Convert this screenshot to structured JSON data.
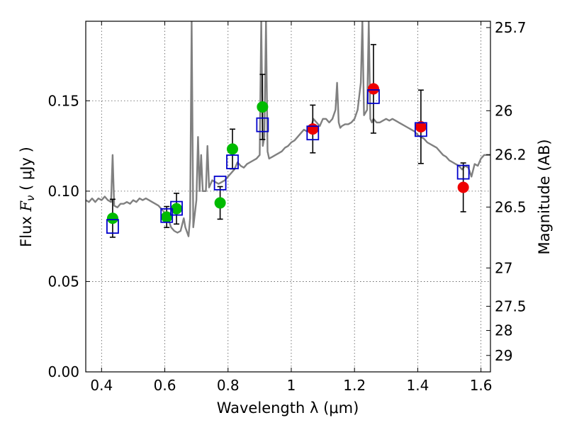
{
  "chart_data": {
    "type": "scatter",
    "xlabel": "Wavelength  λ (μm)",
    "ylabel_prefix": "Flux  ",
    "ylabel_symbol": "F",
    "ylabel_subscript": "ν",
    "ylabel_suffix": "  ( μJy )",
    "y2label": "Magnitude (AB)",
    "xlim": [
      0.35,
      1.63
    ],
    "ylim": [
      0.0,
      0.194
    ],
    "xticks": [
      0.4,
      0.6,
      0.8,
      1.0,
      1.2,
      1.4,
      1.6
    ],
    "xtick_labels": [
      "0.4",
      "0.6",
      "0.8",
      "1",
      "1.2",
      "1.4",
      "1.6"
    ],
    "yticks": [
      0.0,
      0.05,
      0.1,
      0.15
    ],
    "ytick_labels": [
      "0.00",
      "0.05",
      "0.10",
      "0.15"
    ],
    "y2ticks": [
      {
        "label": "25.7",
        "flux": 0.1905
      },
      {
        "label": "26",
        "flux": 0.1445
      },
      {
        "label": "26.2",
        "flux": 0.1202
      },
      {
        "label": "26.5",
        "flux": 0.0912
      },
      {
        "label": "27",
        "flux": 0.0575
      },
      {
        "label": "27.5",
        "flux": 0.0363
      },
      {
        "label": "28",
        "flux": 0.0229
      },
      {
        "label": "29",
        "flux": 0.0091
      }
    ],
    "grid": true,
    "colors": {
      "template": "#808080",
      "optical_points": "#00bb00",
      "nir_points": "#ee0000",
      "model_boxes": "#0000cc",
      "error_bars": "#000000"
    },
    "series": [
      {
        "kind": "observed-optical",
        "points": [
          {
            "x": 0.435,
            "y": 0.085,
            "yerr": 0.0105
          },
          {
            "x": 0.606,
            "y": 0.0857,
            "yerr": 0.0058
          },
          {
            "x": 0.637,
            "y": 0.0903,
            "yerr": 0.0085
          },
          {
            "x": 0.775,
            "y": 0.0935,
            "yerr": 0.009
          },
          {
            "x": 0.814,
            "y": 0.1233,
            "yerr": 0.011
          },
          {
            "x": 0.909,
            "y": 0.1466,
            "yerr": 0.018
          }
        ]
      },
      {
        "kind": "observed-nir",
        "points": [
          {
            "x": 1.068,
            "y": 0.1344,
            "yerr": 0.0132
          },
          {
            "x": 1.26,
            "y": 0.1566,
            "yerr": 0.0245
          },
          {
            "x": 1.41,
            "y": 0.1356,
            "yerr": 0.0203
          },
          {
            "x": 1.544,
            "y": 0.1021,
            "yerr": 0.0135
          }
        ]
      },
      {
        "kind": "model-photometry",
        "points": [
          {
            "x": 0.435,
            "y": 0.0805
          },
          {
            "x": 0.606,
            "y": 0.0865
          },
          {
            "x": 0.637,
            "y": 0.0905
          },
          {
            "x": 0.775,
            "y": 0.1045
          },
          {
            "x": 0.814,
            "y": 0.1162
          },
          {
            "x": 0.909,
            "y": 0.1367
          },
          {
            "x": 1.068,
            "y": 0.1322
          },
          {
            "x": 1.26,
            "y": 0.1523
          },
          {
            "x": 1.41,
            "y": 0.1341
          },
          {
            "x": 1.544,
            "y": 0.1105
          }
        ]
      },
      {
        "kind": "template-spectrum",
        "x": [
          0.35,
          0.36,
          0.37,
          0.38,
          0.39,
          0.4,
          0.41,
          0.42,
          0.43,
          0.435,
          0.44,
          0.45,
          0.46,
          0.47,
          0.48,
          0.49,
          0.5,
          0.51,
          0.52,
          0.53,
          0.54,
          0.55,
          0.56,
          0.57,
          0.58,
          0.59,
          0.6,
          0.61,
          0.62,
          0.63,
          0.64,
          0.65,
          0.66,
          0.665,
          0.675,
          0.68,
          0.685,
          0.69,
          0.7,
          0.705,
          0.71,
          0.715,
          0.72,
          0.73,
          0.735,
          0.74,
          0.75,
          0.76,
          0.77,
          0.78,
          0.79,
          0.8,
          0.81,
          0.82,
          0.83,
          0.84,
          0.85,
          0.86,
          0.87,
          0.88,
          0.89,
          0.9,
          0.905,
          0.91,
          0.915,
          0.92,
          0.925,
          0.93,
          0.94,
          0.95,
          0.96,
          0.97,
          0.98,
          0.99,
          1.0,
          1.01,
          1.02,
          1.03,
          1.04,
          1.05,
          1.06,
          1.07,
          1.08,
          1.09,
          1.1,
          1.11,
          1.12,
          1.13,
          1.14,
          1.145,
          1.15,
          1.155,
          1.16,
          1.17,
          1.18,
          1.19,
          1.2,
          1.21,
          1.22,
          1.225,
          1.23,
          1.24,
          1.245,
          1.25,
          1.255,
          1.26,
          1.27,
          1.28,
          1.29,
          1.3,
          1.31,
          1.32,
          1.33,
          1.34,
          1.35,
          1.36,
          1.37,
          1.38,
          1.39,
          1.4,
          1.41,
          1.42,
          1.43,
          1.44,
          1.45,
          1.46,
          1.47,
          1.48,
          1.49,
          1.5,
          1.51,
          1.52,
          1.53,
          1.54,
          1.55,
          1.56,
          1.57,
          1.58,
          1.59,
          1.6,
          1.61,
          1.62,
          1.63
        ],
        "y": [
          0.095,
          0.094,
          0.096,
          0.094,
          0.096,
          0.095,
          0.097,
          0.095,
          0.094,
          0.12,
          0.092,
          0.091,
          0.093,
          0.093,
          0.094,
          0.093,
          0.095,
          0.094,
          0.096,
          0.095,
          0.096,
          0.095,
          0.094,
          0.093,
          0.092,
          0.09,
          0.088,
          0.085,
          0.08,
          0.078,
          0.077,
          0.078,
          0.085,
          0.08,
          0.075,
          0.085,
          0.194,
          0.08,
          0.095,
          0.13,
          0.1,
          0.12,
          0.1,
          0.1,
          0.125,
          0.102,
          0.106,
          0.105,
          0.104,
          0.105,
          0.106,
          0.108,
          0.11,
          0.112,
          0.116,
          0.114,
          0.113,
          0.115,
          0.116,
          0.117,
          0.118,
          0.12,
          0.194,
          0.125,
          0.13,
          0.194,
          0.122,
          0.118,
          0.119,
          0.12,
          0.121,
          0.122,
          0.124,
          0.125,
          0.127,
          0.128,
          0.13,
          0.132,
          0.134,
          0.133,
          0.134,
          0.14,
          0.138,
          0.136,
          0.14,
          0.14,
          0.138,
          0.14,
          0.145,
          0.16,
          0.138,
          0.135,
          0.136,
          0.137,
          0.137,
          0.138,
          0.14,
          0.145,
          0.16,
          0.194,
          0.142,
          0.145,
          0.194,
          0.14,
          0.138,
          0.14,
          0.138,
          0.138,
          0.139,
          0.14,
          0.139,
          0.14,
          0.139,
          0.138,
          0.137,
          0.136,
          0.135,
          0.134,
          0.133,
          0.131,
          0.13,
          0.129,
          0.127,
          0.126,
          0.125,
          0.124,
          0.122,
          0.12,
          0.119,
          0.117,
          0.116,
          0.115,
          0.114,
          0.112,
          0.114,
          0.113,
          0.108,
          0.115,
          0.114,
          0.118,
          0.12,
          0.12,
          0.12
        ]
      }
    ]
  }
}
